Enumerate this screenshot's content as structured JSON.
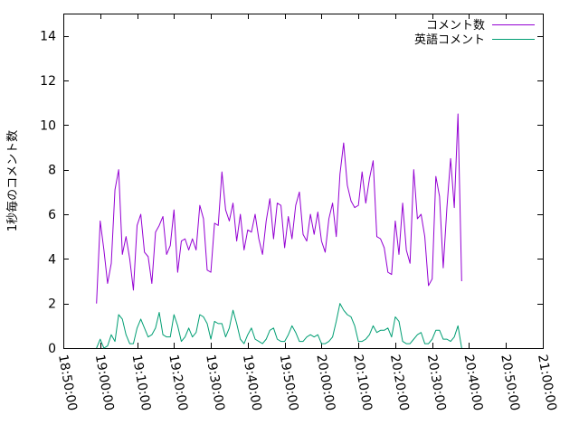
{
  "chart_data": {
    "type": "line",
    "title": "",
    "xlabel": "",
    "ylabel": "1秒毎のコメント数",
    "xlim": [
      "18:50:00",
      "21:00:00"
    ],
    "ylim": [
      0,
      15
    ],
    "x_ticks": [
      "18:50:00",
      "19:00:00",
      "19:10:00",
      "19:20:00",
      "19:30:00",
      "19:40:00",
      "19:50:00",
      "20:00:00",
      "20:10:00",
      "20:20:00",
      "20:30:00",
      "20:40:00",
      "20:50:00",
      "21:00:00"
    ],
    "y_ticks": [
      "0",
      "2",
      "4",
      "6",
      "8",
      "10",
      "12",
      "14"
    ],
    "legend_position": "top-right",
    "grid": false,
    "x_step_seconds": 60,
    "series": [
      {
        "name": "コメント数",
        "color": "#9400d3",
        "x_start": "18:59:00",
        "values": [
          2.0,
          5.7,
          4.4,
          2.9,
          3.8,
          7.1,
          8.0,
          4.2,
          5.0,
          4.0,
          2.6,
          5.5,
          6.0,
          4.3,
          4.1,
          2.9,
          5.2,
          5.5,
          5.9,
          4.2,
          4.6,
          6.2,
          3.4,
          4.8,
          4.9,
          4.4,
          4.9,
          4.4,
          6.4,
          5.8,
          3.5,
          3.4,
          5.6,
          5.5,
          7.9,
          6.2,
          5.7,
          6.5,
          4.8,
          6.0,
          4.4,
          5.3,
          5.2,
          6.0,
          4.9,
          4.2,
          5.7,
          6.7,
          4.9,
          6.5,
          6.4,
          4.5,
          5.9,
          4.9,
          6.4,
          7.0,
          5.1,
          4.8,
          6.0,
          5.1,
          6.1,
          4.8,
          4.3,
          5.8,
          6.5,
          5.0,
          7.8,
          9.2,
          7.3,
          6.6,
          6.3,
          6.4,
          7.9,
          6.5,
          7.6,
          8.4,
          5.0,
          4.9,
          4.5,
          3.4,
          3.3,
          5.7,
          4.2,
          6.5,
          4.4,
          3.8,
          8.0,
          5.8,
          6.0,
          5.0,
          2.8,
          3.1,
          7.7,
          6.8,
          3.6,
          6.3,
          8.5,
          6.3,
          10.5,
          3.0
        ]
      },
      {
        "name": "英語コメント",
        "color": "#009e73",
        "x_start": "18:59:00",
        "values": [
          0.0,
          0.4,
          0.0,
          0.1,
          0.6,
          0.3,
          1.5,
          1.3,
          0.6,
          0.2,
          0.2,
          0.9,
          1.3,
          0.9,
          0.5,
          0.6,
          0.9,
          1.6,
          0.6,
          0.5,
          0.5,
          1.5,
          1.0,
          0.3,
          0.5,
          0.9,
          0.5,
          0.7,
          1.5,
          1.4,
          1.1,
          0.4,
          1.2,
          1.1,
          1.1,
          0.5,
          0.9,
          1.7,
          1.1,
          0.4,
          0.2,
          0.6,
          0.9,
          0.4,
          0.3,
          0.2,
          0.4,
          0.8,
          0.9,
          0.4,
          0.3,
          0.3,
          0.6,
          1.0,
          0.7,
          0.3,
          0.3,
          0.5,
          0.6,
          0.5,
          0.6,
          0.2,
          0.2,
          0.3,
          0.5,
          1.2,
          2.0,
          1.7,
          1.5,
          1.4,
          1.0,
          0.3,
          0.3,
          0.4,
          0.6,
          1.0,
          0.7,
          0.8,
          0.8,
          0.9,
          0.5,
          1.4,
          1.2,
          0.3,
          0.2,
          0.2,
          0.4,
          0.6,
          0.7,
          0.2,
          0.2,
          0.4,
          0.8,
          0.8,
          0.4,
          0.4,
          0.3,
          0.5,
          1.0,
          0.0
        ]
      }
    ]
  }
}
